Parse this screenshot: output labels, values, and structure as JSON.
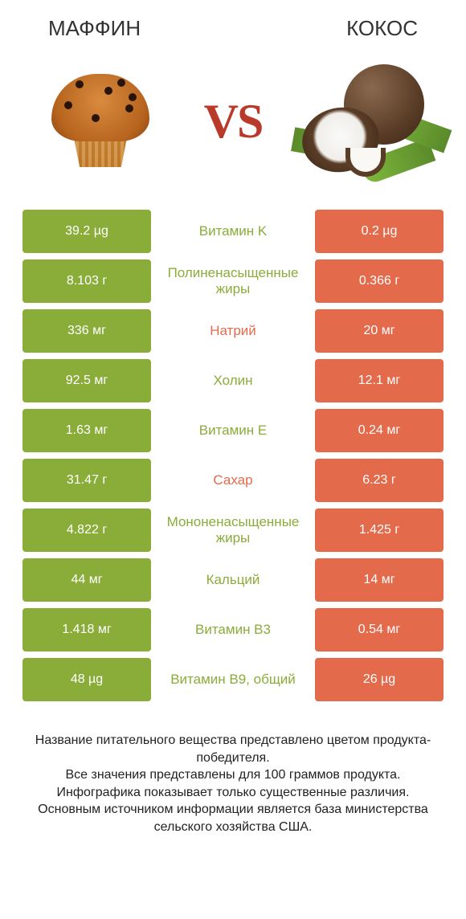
{
  "header": {
    "left_title": "МАФФИН",
    "right_title": "КОКОС",
    "vs_text": "VS"
  },
  "colors": {
    "left_bar": "#8aad3a",
    "right_bar": "#e46a4c",
    "left_label": "#8aad3a",
    "right_label": "#e46a4c",
    "row_text_white": "#ffffff",
    "background": "#ffffff"
  },
  "rows": [
    {
      "left": "39.2 µg",
      "mid": "Витамин K",
      "right": "0.2 µg",
      "winner": "left"
    },
    {
      "left": "8.103 г",
      "mid": "Полиненасыщенные жиры",
      "right": "0.366 г",
      "winner": "left"
    },
    {
      "left": "336 мг",
      "mid": "Натрий",
      "right": "20 мг",
      "winner": "right"
    },
    {
      "left": "92.5 мг",
      "mid": "Холин",
      "right": "12.1 мг",
      "winner": "left"
    },
    {
      "left": "1.63 мг",
      "mid": "Витамин E",
      "right": "0.24 мг",
      "winner": "left"
    },
    {
      "left": "31.47 г",
      "mid": "Сахар",
      "right": "6.23 г",
      "winner": "right"
    },
    {
      "left": "4.822 г",
      "mid": "Мононенасыщенные жиры",
      "right": "1.425 г",
      "winner": "left"
    },
    {
      "left": "44 мг",
      "mid": "Кальций",
      "right": "14 мг",
      "winner": "left"
    },
    {
      "left": "1.418 мг",
      "mid": "Витамин B3",
      "right": "0.54 мг",
      "winner": "left"
    },
    {
      "left": "48 µg",
      "mid": "Витамин B9, общий",
      "right": "26 µg",
      "winner": "left"
    }
  ],
  "footer": {
    "line1": "Название питательного вещества представлено цветом продукта-победителя.",
    "line2": "Все значения представлены для 100 граммов продукта.",
    "line3": "Инфографика показывает только существенные различия.",
    "line4": "Основным источником информации является база министерства сельского хозяйства США."
  }
}
